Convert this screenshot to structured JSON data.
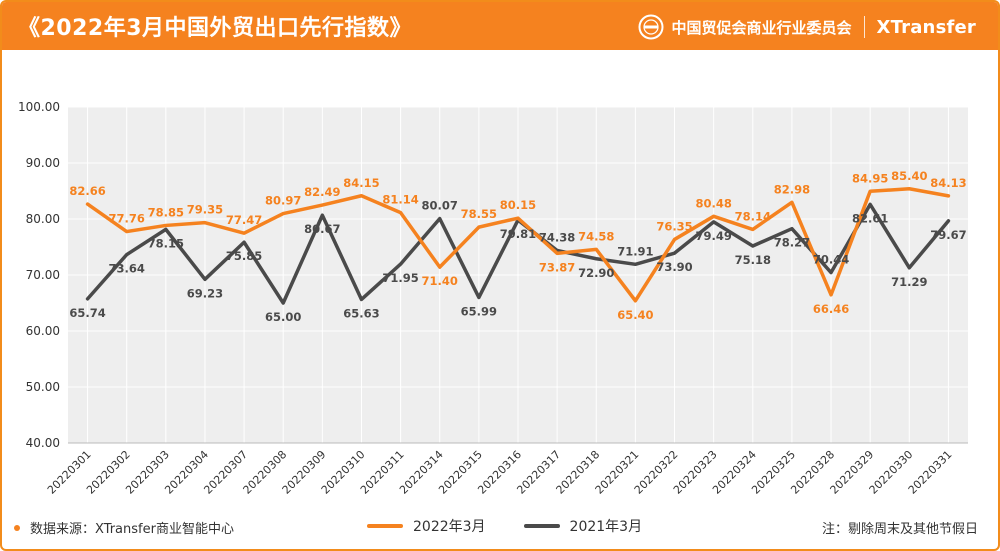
{
  "header": {
    "title": "《2022年3月中国外贸出口先行指数》",
    "org_name": "中国贸促会商业行业委员会",
    "logo_text": "XTransfer"
  },
  "footer": {
    "source": "数据来源：XTransfer商业智能中心",
    "note": "注：剔除周末及其他节假日"
  },
  "colors": {
    "accent": "#f5821f",
    "series_2022": "#f5821f",
    "series_2021": "#4a4a4a"
  },
  "chart_data": {
    "type": "line",
    "ylim": [
      40,
      100
    ],
    "yticks": [
      "100.00",
      "90.00",
      "80.00",
      "70.00",
      "60.00",
      "50.00",
      "40.00"
    ],
    "grid": true,
    "legend_position": "bottom",
    "categories": [
      "20220301",
      "20220302",
      "20220303",
      "20220304",
      "20220307",
      "20220308",
      "20220309",
      "20220310",
      "20220311",
      "20220314",
      "20220315",
      "20220316",
      "20220317",
      "20220318",
      "20220321",
      "20220322",
      "20220323",
      "20220324",
      "20220325",
      "20220328",
      "20220329",
      "20220330",
      "20220331"
    ],
    "series": [
      {
        "name": "2022年3月",
        "color": "#f5821f",
        "values": [
          82.66,
          77.76,
          78.85,
          79.35,
          77.47,
          80.97,
          82.49,
          84.15,
          81.14,
          71.4,
          78.55,
          80.15,
          73.87,
          74.58,
          65.4,
          76.35,
          80.48,
          78.14,
          82.98,
          66.46,
          84.95,
          85.4,
          84.13
        ],
        "labels": [
          "82.66",
          "77.76",
          "78.85",
          "79.35",
          "77.47",
          "80.97",
          "82.49",
          "84.15",
          "81.14",
          "71.40",
          "78.55",
          "80.15",
          "73.87",
          "74.58",
          "65.40",
          "76.35",
          "80.48",
          "78.14",
          "82.98",
          "66.46",
          "84.95",
          "85.40",
          "84.13"
        ]
      },
      {
        "name": "2021年3月",
        "color": "#4a4a4a",
        "values": [
          65.74,
          73.64,
          78.15,
          69.23,
          75.85,
          65.0,
          80.67,
          65.63,
          71.95,
          80.07,
          65.99,
          79.81,
          74.38,
          72.9,
          71.91,
          73.9,
          79.49,
          75.18,
          78.27,
          70.44,
          82.61,
          71.29,
          79.67
        ],
        "labels": [
          "65.74",
          "73.64",
          "78.15",
          "69.23",
          "75.85",
          "65.00",
          "80.67",
          "65.63",
          "71.95",
          "80.07",
          "65.99",
          "79.81",
          "74.38",
          "72.90",
          "71.91",
          "73.90",
          "79.49",
          "75.18",
          "78.27",
          "70.44",
          "82.61",
          "71.29",
          "79.67"
        ]
      }
    ]
  }
}
